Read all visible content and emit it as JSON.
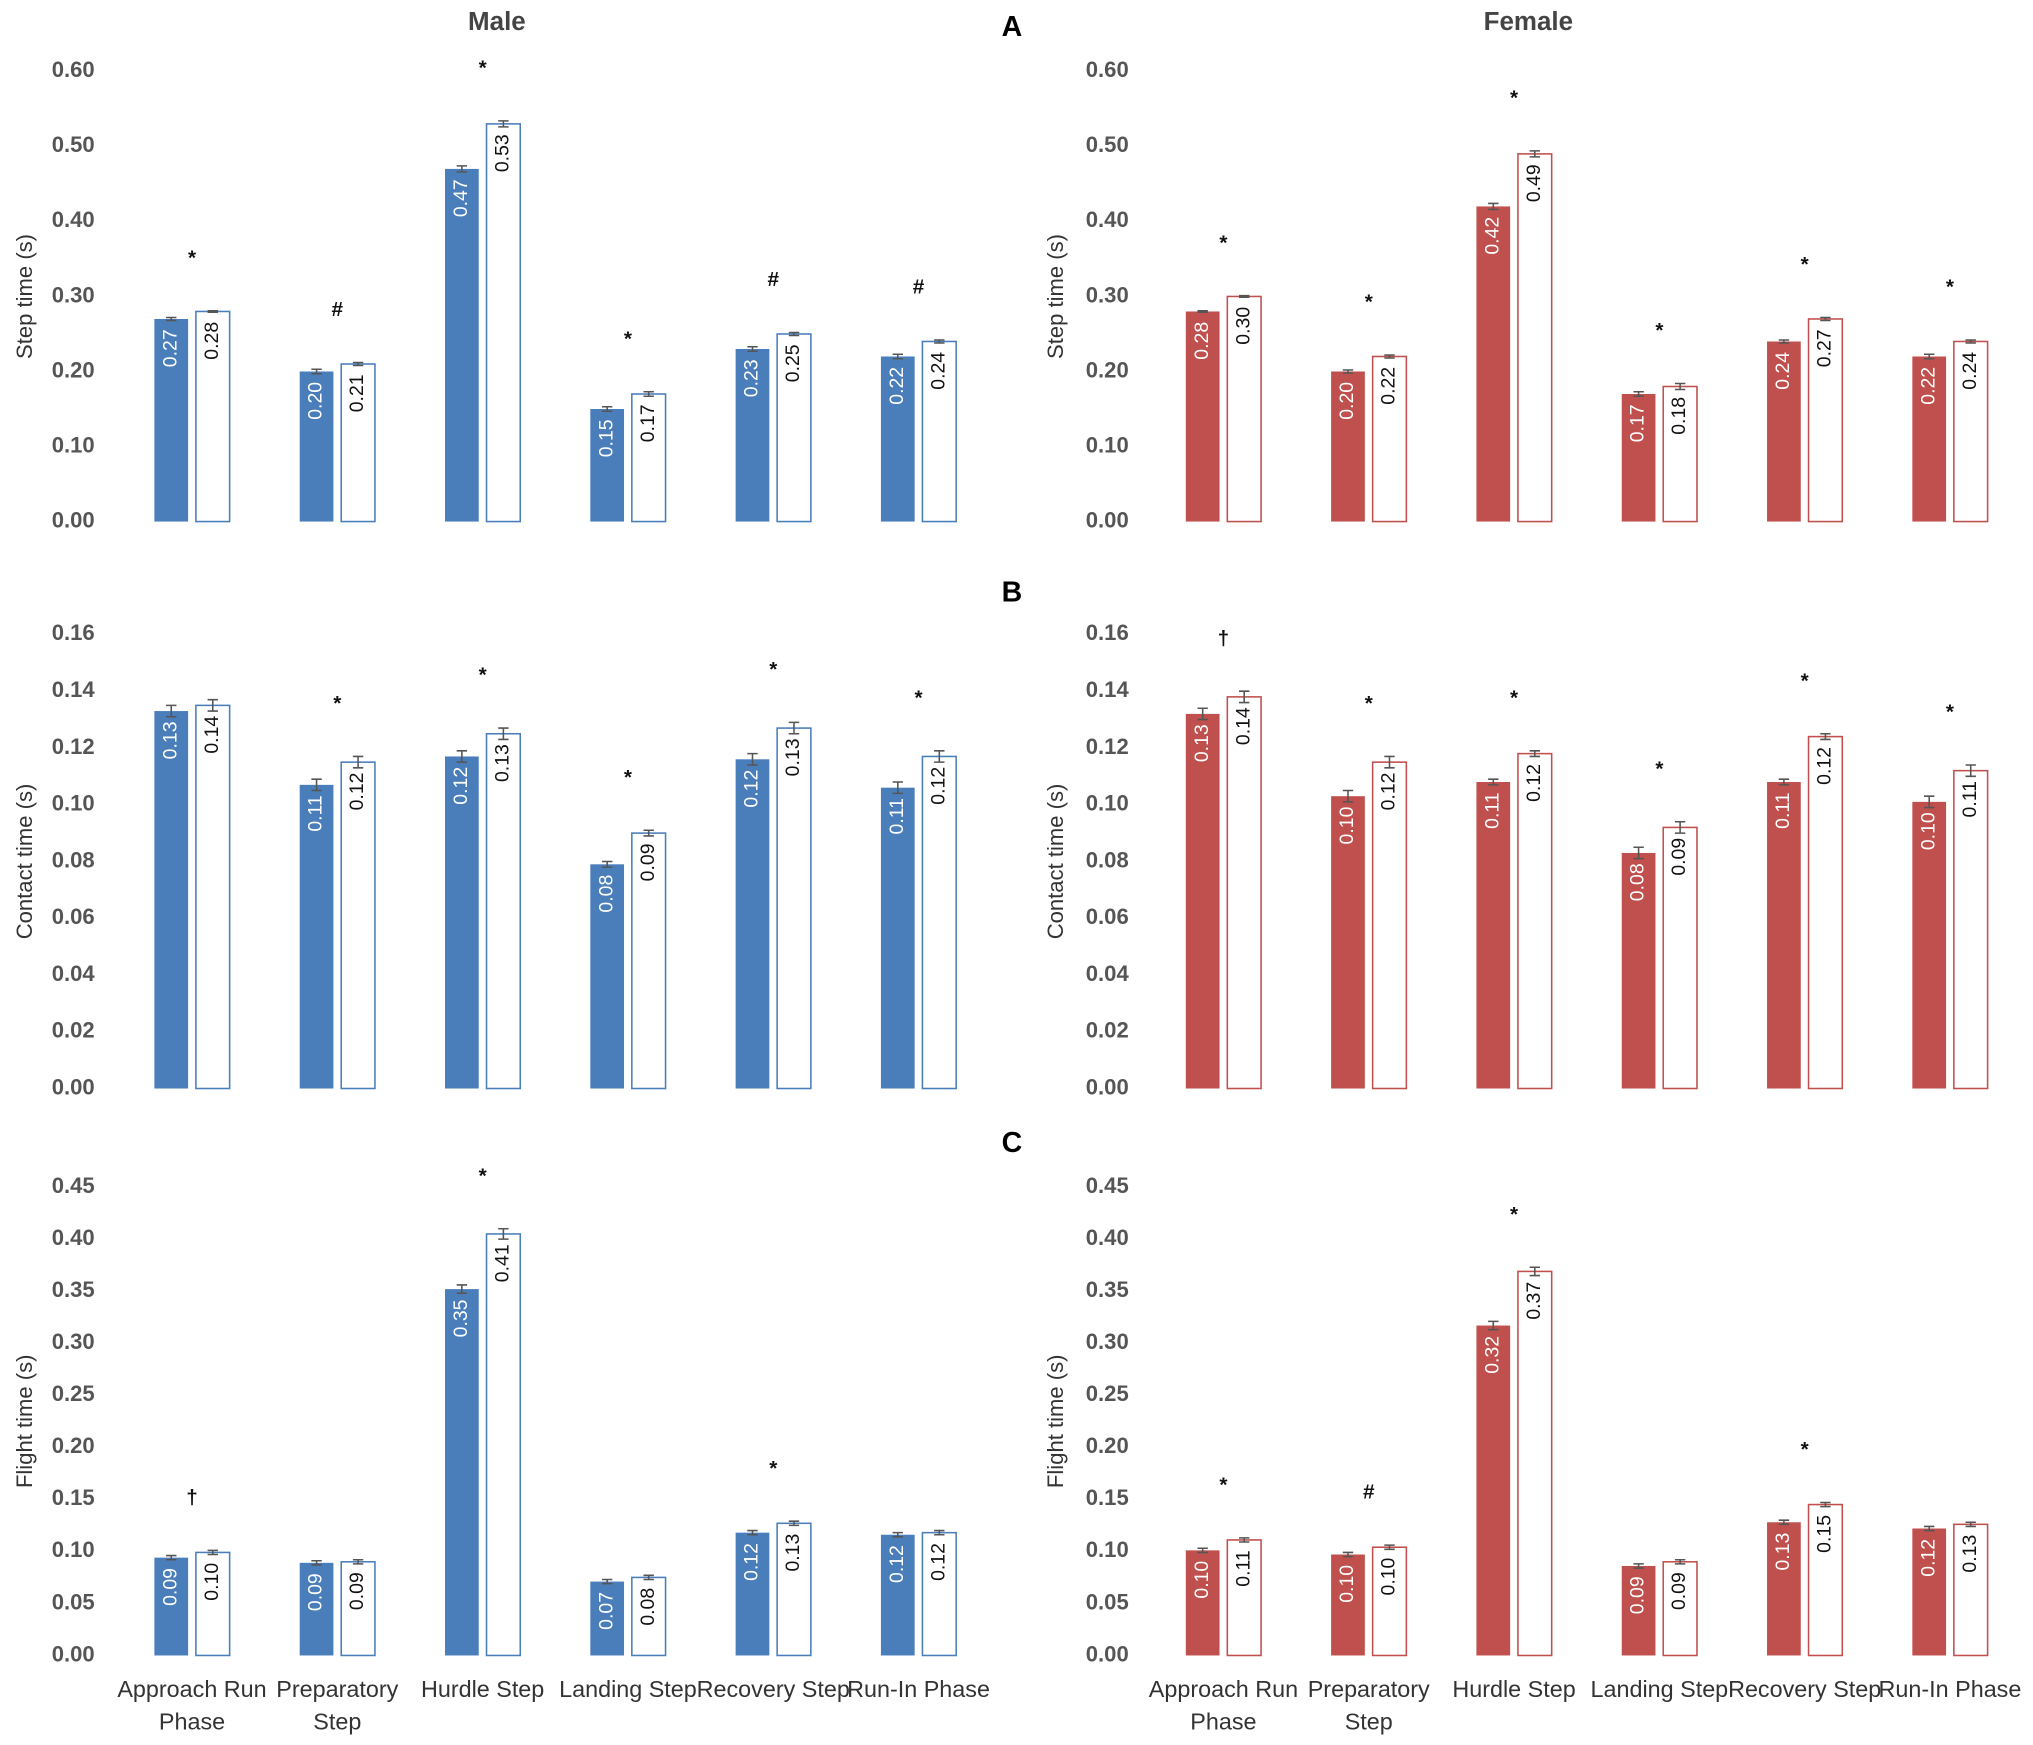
{
  "column_titles_note": null,
  "chart_data": [
    {
      "type": "bar",
      "title": "Male",
      "ylabel": "Step time (s)",
      "categories": [
        null,
        null,
        null,
        null,
        null,
        null
      ],
      "series": [
        {
          "color": "#4a7ebb",
          "style": "filled",
          "values": [
            0.27,
            0.2,
            0.47,
            0.15,
            0.23,
            0.22
          ],
          "value_labels": [
            "0.27",
            "0.20",
            "0.47",
            "0.15",
            "0.23",
            "0.22"
          ],
          "errors": [
            0.002,
            0.003,
            0.004,
            0.003,
            0.003,
            0.003
          ]
        },
        {
          "color": "#4a7ebb",
          "style": "outline",
          "values": [
            0.28,
            0.21,
            0.53,
            0.17,
            0.25,
            0.24
          ],
          "value_labels": [
            "0.28",
            "0.21",
            "0.53",
            "0.17",
            "0.25",
            "0.24"
          ],
          "errors": [
            0.001,
            0.002,
            0.004,
            0.003,
            0.002,
            0.002
          ]
        }
      ],
      "annotations": [
        "*",
        "#",
        "*",
        "*",
        "#",
        "#"
      ],
      "ylim": [
        0,
        0.6
      ],
      "yticks": [
        {
          "value": 0,
          "label": "0.00"
        },
        {
          "value": 0.1,
          "label": "0.10"
        },
        {
          "value": 0.2,
          "label": "0.20"
        },
        {
          "value": 0.3,
          "label": "0.30"
        },
        {
          "value": 0.4,
          "label": "0.40"
        },
        {
          "value": 0.5,
          "label": "0.50"
        },
        {
          "value": 0.6,
          "label": "0.60"
        }
      ]
    },
    {
      "type": "bar",
      "title": "Female",
      "panel_label": "A",
      "ylabel": "Step time (s)",
      "categories": [
        null,
        null,
        null,
        null,
        null,
        null
      ],
      "series": [
        {
          "color": "#c0504d",
          "style": "filled",
          "values": [
            0.28,
            0.2,
            0.42,
            0.17,
            0.24,
            0.22
          ],
          "value_labels": [
            "0.28",
            "0.20",
            "0.42",
            "0.17",
            "0.24",
            "0.22"
          ],
          "errors": [
            0.001,
            0.002,
            0.004,
            0.003,
            0.002,
            0.003
          ]
        },
        {
          "color": "#c0504d",
          "style": "outline",
          "values": [
            0.3,
            0.22,
            0.49,
            0.18,
            0.27,
            0.24
          ],
          "value_labels": [
            "0.30",
            "0.22",
            "0.49",
            "0.18",
            "0.27",
            "0.24"
          ],
          "errors": [
            0.001,
            0.002,
            0.004,
            0.004,
            0.002,
            0.002
          ]
        }
      ],
      "annotations": [
        "*",
        "*",
        "*",
        "*",
        "*",
        "*"
      ],
      "ylim": [
        0,
        0.6
      ],
      "yticks": [
        {
          "value": 0,
          "label": "0.00"
        },
        {
          "value": 0.1,
          "label": "0.10"
        },
        {
          "value": 0.2,
          "label": "0.20"
        },
        {
          "value": 0.3,
          "label": "0.30"
        },
        {
          "value": 0.4,
          "label": "0.40"
        },
        {
          "value": 0.5,
          "label": "0.50"
        },
        {
          "value": 0.6,
          "label": "0.60"
        }
      ]
    },
    {
      "type": "bar",
      "ylabel": "Contact time (s)",
      "categories": [
        null,
        null,
        null,
        null,
        null,
        null
      ],
      "series": [
        {
          "color": "#4a7ebb",
          "style": "filled",
          "values": [
            0.133,
            0.107,
            0.117,
            0.079,
            0.116,
            0.106
          ],
          "value_labels": [
            "0.13",
            "0.11",
            "0.12",
            "0.08",
            "0.12",
            "0.11"
          ],
          "errors": [
            0.002,
            0.002,
            0.002,
            0.001,
            0.002,
            0.002
          ]
        },
        {
          "color": "#4a7ebb",
          "style": "outline",
          "values": [
            0.135,
            0.115,
            0.125,
            0.09,
            0.127,
            0.117
          ],
          "value_labels": [
            "0.14",
            "0.12",
            "0.13",
            "0.09",
            "0.13",
            "0.12"
          ],
          "errors": [
            0.002,
            0.002,
            0.002,
            0.001,
            0.002,
            0.002
          ]
        }
      ],
      "annotations": [
        null,
        "*",
        "*",
        "*",
        "*",
        "*"
      ],
      "ylim": [
        0,
        0.16
      ],
      "yticks": [
        {
          "value": 0,
          "label": "0.00"
        },
        {
          "value": 0.02,
          "label": "0.02"
        },
        {
          "value": 0.04,
          "label": "0.04"
        },
        {
          "value": 0.06,
          "label": "0.06"
        },
        {
          "value": 0.08,
          "label": "0.08"
        },
        {
          "value": 0.1,
          "label": "0.10"
        },
        {
          "value": 0.12,
          "label": "0.12"
        },
        {
          "value": 0.14,
          "label": "0.14"
        },
        {
          "value": 0.16,
          "label": "0.16"
        }
      ]
    },
    {
      "type": "bar",
      "panel_label": "B",
      "ylabel": "Contact time (s)",
      "categories": [
        null,
        null,
        null,
        null,
        null,
        null
      ],
      "series": [
        {
          "color": "#c0504d",
          "style": "filled",
          "values": [
            0.132,
            0.103,
            0.108,
            0.083,
            0.108,
            0.101
          ],
          "value_labels": [
            "0.13",
            "0.10",
            "0.11",
            "0.08",
            "0.11",
            "0.10"
          ],
          "errors": [
            0.002,
            0.002,
            0.001,
            0.002,
            0.001,
            0.002
          ]
        },
        {
          "color": "#c0504d",
          "style": "outline",
          "values": [
            0.138,
            0.115,
            0.118,
            0.092,
            0.124,
            0.112
          ],
          "value_labels": [
            "0.14",
            "0.12",
            "0.12",
            "0.09",
            "0.12",
            "0.11"
          ],
          "errors": [
            0.002,
            0.002,
            0.001,
            0.002,
            0.001,
            0.002
          ]
        }
      ],
      "annotations": [
        "†",
        "*",
        "*",
        "*",
        "*",
        "*"
      ],
      "ylim": [
        0,
        0.16
      ],
      "yticks": [
        {
          "value": 0,
          "label": "0.00"
        },
        {
          "value": 0.02,
          "label": "0.02"
        },
        {
          "value": 0.04,
          "label": "0.04"
        },
        {
          "value": 0.06,
          "label": "0.06"
        },
        {
          "value": 0.08,
          "label": "0.08"
        },
        {
          "value": 0.1,
          "label": "0.10"
        },
        {
          "value": 0.12,
          "label": "0.12"
        },
        {
          "value": 0.14,
          "label": "0.14"
        },
        {
          "value": 0.16,
          "label": "0.16"
        }
      ]
    },
    {
      "type": "bar",
      "ylabel": "Flight time (s)",
      "categories": [
        "Approach Run Phase",
        "Preparatory Step",
        "Hurdle Step",
        "Landing Step",
        "Recovery Step",
        "Run-In Phase"
      ],
      "series": [
        {
          "color": "#4a7ebb",
          "style": "filled",
          "values": [
            0.094,
            0.089,
            0.352,
            0.071,
            0.118,
            0.116
          ],
          "value_labels": [
            "0.09",
            "0.09",
            "0.35",
            "0.07",
            "0.12",
            "0.12"
          ],
          "errors": [
            0.002,
            0.002,
            0.004,
            0.002,
            0.002,
            0.002
          ]
        },
        {
          "color": "#4a7ebb",
          "style": "outline",
          "values": [
            0.099,
            0.09,
            0.405,
            0.075,
            0.127,
            0.118
          ],
          "value_labels": [
            "0.10",
            "0.09",
            "0.41",
            "0.08",
            "0.13",
            "0.12"
          ],
          "errors": [
            0.002,
            0.002,
            0.005,
            0.002,
            0.002,
            0.002
          ]
        }
      ],
      "annotations": [
        "†",
        null,
        "*",
        null,
        "*",
        null
      ],
      "ylim": [
        0,
        0.45
      ],
      "yticks": [
        {
          "value": 0,
          "label": "0.00"
        },
        {
          "value": 0.05,
          "label": "0.05"
        },
        {
          "value": 0.1,
          "label": "0.10"
        },
        {
          "value": 0.15,
          "label": "0.15"
        },
        {
          "value": 0.2,
          "label": "0.20"
        },
        {
          "value": 0.25,
          "label": "0.25"
        },
        {
          "value": 0.3,
          "label": "0.30"
        },
        {
          "value": 0.35,
          "label": "0.35"
        },
        {
          "value": 0.4,
          "label": "0.40"
        },
        {
          "value": 0.45,
          "label": "0.45"
        }
      ]
    },
    {
      "type": "bar",
      "panel_label": "C",
      "ylabel": "Flight time (s)",
      "categories": [
        "Approach Run Phase",
        "Preparatory Step",
        "Hurdle Step",
        "Landing Step",
        "Recovery Step",
        "Run-In Phase"
      ],
      "series": [
        {
          "color": "#c0504d",
          "style": "filled",
          "values": [
            0.101,
            0.097,
            0.317,
            0.086,
            0.128,
            0.122
          ],
          "value_labels": [
            "0.10",
            "0.10",
            "0.32",
            "0.09",
            "0.13",
            "0.12"
          ],
          "errors": [
            0.002,
            0.002,
            0.004,
            0.002,
            0.002,
            0.002
          ]
        },
        {
          "color": "#c0504d",
          "style": "outline",
          "values": [
            0.111,
            0.104,
            0.369,
            0.09,
            0.145,
            0.126
          ],
          "value_labels": [
            "0.11",
            "0.10",
            "0.37",
            "0.09",
            "0.15",
            "0.13"
          ],
          "errors": [
            0.002,
            0.002,
            0.004,
            0.002,
            0.002,
            0.002
          ]
        }
      ],
      "annotations": [
        "*",
        "#",
        "*",
        null,
        "*",
        null
      ],
      "ylim": [
        0,
        0.45
      ],
      "yticks": [
        {
          "value": 0,
          "label": "0.00"
        },
        {
          "value": 0.05,
          "label": "0.05"
        },
        {
          "value": 0.1,
          "label": "0.10"
        },
        {
          "value": 0.15,
          "label": "0.15"
        },
        {
          "value": 0.2,
          "label": "0.20"
        },
        {
          "value": 0.25,
          "label": "0.25"
        },
        {
          "value": 0.3,
          "label": "0.30"
        },
        {
          "value": 0.35,
          "label": "0.35"
        },
        {
          "value": 0.4,
          "label": "0.40"
        },
        {
          "value": 0.45,
          "label": "0.45"
        }
      ]
    }
  ]
}
